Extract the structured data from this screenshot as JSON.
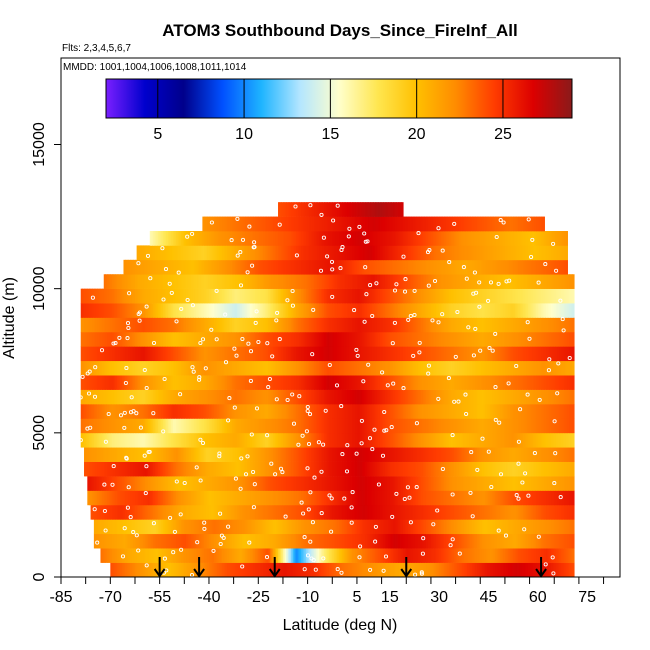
{
  "chart_data": {
    "type": "heatmap",
    "title": "ATOM3 Southbound Days_Since_FireInf_All",
    "flights_note": "Flts: 2,3,4,5,6,7",
    "dates_note": "MMDD: 1001,1004,1006,1008,1011,1014",
    "xlabel": "Latitude (deg N)",
    "ylabel": "Altitude (m)",
    "xlim": [
      -85,
      85
    ],
    "ylim": [
      0,
      18000
    ],
    "x_ticks": [
      -85,
      -70,
      -55,
      -40,
      -25,
      -10,
      5,
      15,
      30,
      45,
      60,
      75
    ],
    "x_tick_labels": [
      "-85",
      "-70",
      "-55",
      "-40",
      "-25",
      "-10",
      "5",
      "15",
      "30",
      "45",
      "60",
      "75"
    ],
    "y_ticks": [
      0,
      5000,
      10000,
      15000
    ],
    "y_tick_labels": [
      "0",
      "5000",
      "10000",
      "15000"
    ],
    "colorbar": {
      "range": [
        2,
        29
      ],
      "ticks": [
        5,
        10,
        15,
        20,
        25
      ],
      "tick_labels": [
        "5",
        "10",
        "15",
        "20",
        "25"
      ],
      "colors": [
        "#7a1fff",
        "#0000cd",
        "#00008b",
        "#0050ff",
        "#1eb4ff",
        "#b4e6ff",
        "#ffffcc",
        "#ffe650",
        "#ffc000",
        "#ff8c00",
        "#ff3c00",
        "#dc0000",
        "#8b1a1a"
      ]
    },
    "arrow_latitudes": [
      -55,
      -43,
      -20,
      20,
      61
    ],
    "layers": [
      {
        "alt": 250,
        "lat": [
          -70,
          71
        ],
        "values": [
          24,
          22,
          20,
          22,
          24,
          25,
          26,
          25,
          23,
          22,
          21,
          22,
          24,
          26,
          27,
          26,
          24
        ]
      },
      {
        "alt": 750,
        "lat": [
          -73,
          71
        ],
        "values": [
          23,
          21,
          20,
          22,
          23,
          21,
          24,
          10,
          17,
          22,
          24,
          26,
          25,
          23,
          22,
          24,
          25,
          23
        ]
      },
      {
        "alt": 1250,
        "lat": [
          -75,
          71
        ],
        "values": [
          22,
          21,
          23,
          24,
          22,
          20,
          21,
          23,
          24,
          25,
          27,
          26,
          24,
          22,
          21,
          23,
          24
        ]
      },
      {
        "alt": 1750,
        "lat": [
          -75,
          71
        ],
        "values": [
          21,
          20,
          19,
          22,
          23,
          22,
          20,
          22,
          23,
          25,
          26,
          24,
          22,
          20,
          21,
          22,
          23
        ]
      },
      {
        "alt": 2250,
        "lat": [
          -76,
          71
        ],
        "values": [
          24,
          25,
          23,
          21,
          20,
          22,
          23,
          24,
          26,
          27,
          26,
          25,
          24,
          23,
          22,
          24,
          25
        ]
      },
      {
        "alt": 2750,
        "lat": [
          -77,
          71
        ],
        "values": [
          22,
          24,
          25,
          22,
          20,
          21,
          22,
          23,
          25,
          27,
          26,
          24,
          23,
          22,
          24,
          25,
          26
        ]
      },
      {
        "alt": 3250,
        "lat": [
          -77,
          71
        ],
        "values": [
          26,
          24,
          22,
          20,
          21,
          22,
          24,
          25,
          26,
          27,
          26,
          24,
          22,
          21,
          20,
          21,
          22
        ]
      },
      {
        "alt": 3750,
        "lat": [
          -78,
          71
        ],
        "values": [
          24,
          25,
          26,
          23,
          21,
          20,
          22,
          24,
          26,
          27,
          25,
          24,
          22,
          20,
          19,
          20,
          21
        ]
      },
      {
        "alt": 4250,
        "lat": [
          -78,
          71
        ],
        "values": [
          22,
          21,
          20,
          22,
          19,
          20,
          22,
          24,
          26,
          27,
          26,
          25,
          24,
          22,
          21,
          22,
          23
        ]
      },
      {
        "alt": 4750,
        "lat": [
          -79,
          71
        ],
        "values": [
          20,
          17,
          16,
          18,
          20,
          21,
          19,
          22,
          25,
          26,
          24,
          22,
          20,
          21,
          22,
          20,
          19
        ]
      },
      {
        "alt": 5250,
        "lat": [
          -79,
          71
        ],
        "values": [
          23,
          22,
          21,
          16,
          18,
          21,
          22,
          23,
          25,
          26,
          24,
          23,
          22,
          21,
          22,
          23,
          24
        ]
      },
      {
        "alt": 5750,
        "lat": [
          -79,
          71
        ],
        "values": [
          24,
          22,
          23,
          25,
          24,
          22,
          21,
          23,
          25,
          26,
          24,
          22,
          21,
          20,
          22,
          23,
          24
        ]
      },
      {
        "alt": 6250,
        "lat": [
          -79,
          71
        ],
        "values": [
          21,
          20,
          19,
          21,
          22,
          23,
          22,
          24,
          26,
          27,
          25,
          23,
          21,
          20,
          21,
          22,
          23
        ]
      },
      {
        "alt": 6750,
        "lat": [
          -79,
          71
        ],
        "values": [
          24,
          25,
          22,
          20,
          21,
          23,
          24,
          25,
          27,
          26,
          24,
          22,
          21,
          22,
          23,
          24,
          25
        ]
      },
      {
        "alt": 7250,
        "lat": [
          -79,
          71
        ],
        "values": [
          22,
          20,
          19,
          20,
          22,
          21,
          20,
          22,
          24,
          23,
          22,
          20,
          19,
          20,
          21,
          22,
          21
        ]
      },
      {
        "alt": 7750,
        "lat": [
          -79,
          71
        ],
        "values": [
          24,
          25,
          26,
          24,
          22,
          23,
          24,
          26,
          27,
          26,
          25,
          24,
          23,
          22,
          24,
          25,
          26
        ]
      },
      {
        "alt": 8250,
        "lat": [
          -79,
          71
        ],
        "values": [
          23,
          24,
          22,
          20,
          21,
          22,
          24,
          25,
          27,
          26,
          24,
          23,
          22,
          21,
          22,
          23,
          24
        ]
      },
      {
        "alt": 8750,
        "lat": [
          -79,
          71
        ],
        "values": [
          22,
          23,
          24,
          23,
          21,
          19,
          20,
          23,
          25,
          26,
          25,
          23,
          21,
          20,
          21,
          22,
          23
        ]
      },
      {
        "alt": 9250,
        "lat": [
          -79,
          71
        ],
        "values": [
          25,
          24,
          22,
          18,
          16,
          14,
          17,
          21,
          24,
          25,
          23,
          21,
          19,
          18,
          19,
          16,
          14
        ]
      },
      {
        "alt": 9750,
        "lat": [
          -79,
          71
        ],
        "values": [
          24,
          23,
          21,
          20,
          19,
          17,
          18,
          22,
          25,
          26,
          24,
          22,
          20,
          19,
          18,
          17,
          16
        ]
      },
      {
        "alt": 10250,
        "lat": [
          -72,
          71
        ],
        "values": [
          23,
          21,
          20,
          19,
          20,
          22,
          23,
          25,
          26,
          24,
          22,
          21,
          20,
          21,
          22
        ]
      },
      {
        "alt": 10750,
        "lat": [
          -66,
          69
        ],
        "values": [
          22,
          21,
          20,
          22,
          24,
          25,
          26,
          24,
          23,
          22,
          21,
          22,
          23,
          24
        ]
      },
      {
        "alt": 11250,
        "lat": [
          -62,
          69
        ],
        "values": [
          21,
          20,
          19,
          21,
          23,
          25,
          26,
          27,
          25,
          23,
          22,
          21,
          20,
          21
        ]
      },
      {
        "alt": 11750,
        "lat": [
          -58,
          69
        ],
        "values": [
          16,
          20,
          22,
          23,
          24,
          26,
          27,
          26,
          24,
          22,
          21,
          20,
          22
        ]
      },
      {
        "alt": 12250,
        "lat": [
          -42,
          62
        ],
        "values": [
          22,
          23,
          24,
          25,
          26,
          27,
          26,
          25,
          24,
          23,
          24
        ]
      },
      {
        "alt": 12750,
        "lat": [
          -19,
          19
        ],
        "values": [
          24,
          25,
          26,
          27,
          28,
          27
        ]
      }
    ]
  }
}
